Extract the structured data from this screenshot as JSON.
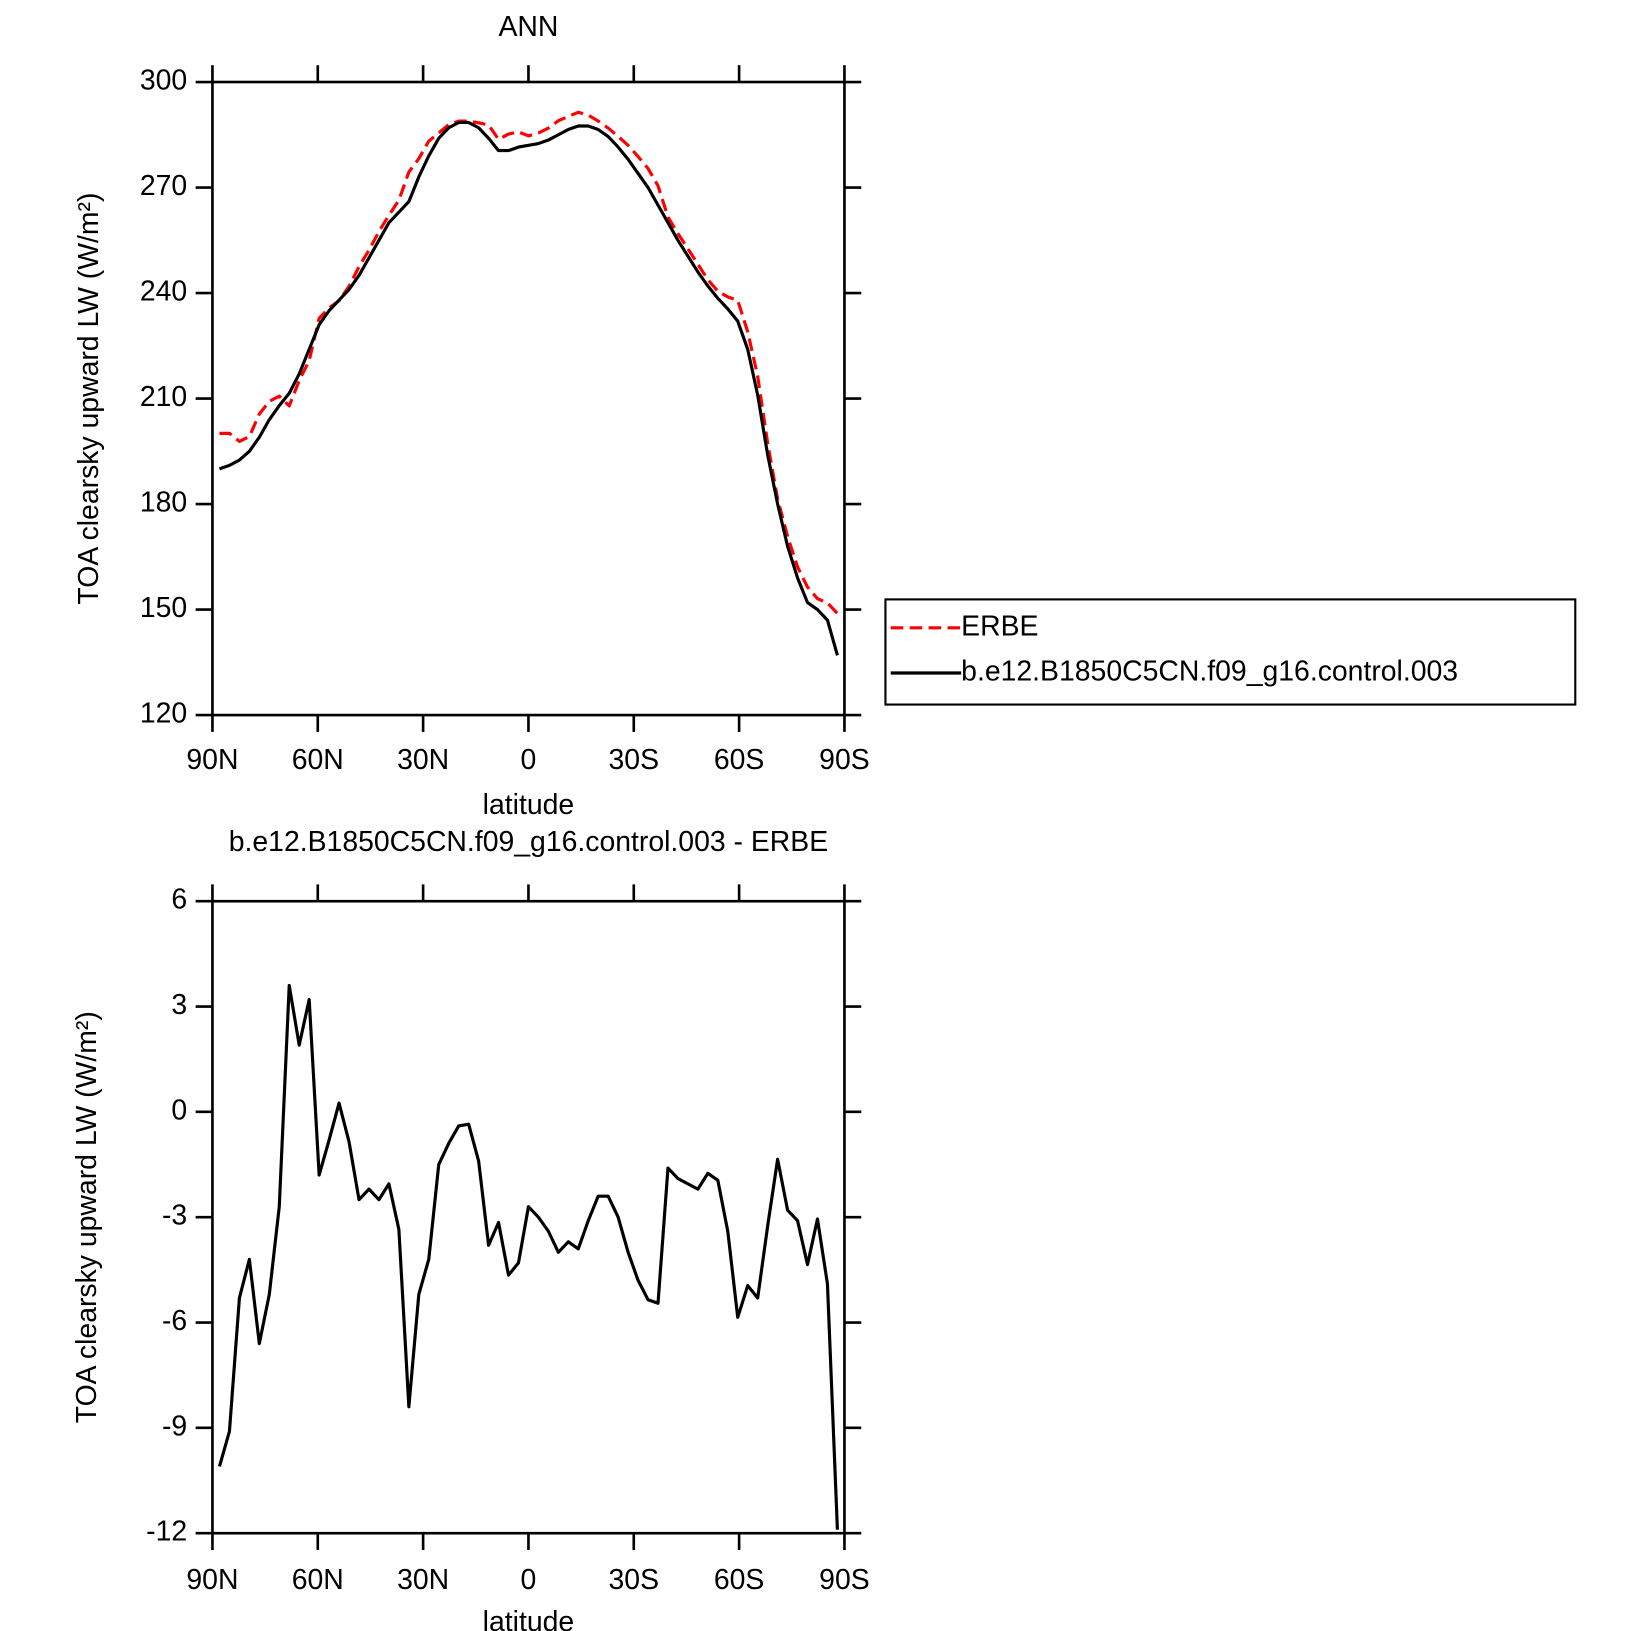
{
  "chart_data": [
    {
      "type": "line",
      "title": "ANN",
      "x_label": "latitude",
      "y_label": "TOA clearsky upward LW (W/m²)",
      "x": [
        88.0,
        85.16,
        82.32,
        79.48,
        76.65,
        73.81,
        70.97,
        68.13,
        65.29,
        62.45,
        59.61,
        56.77,
        53.94,
        51.1,
        48.26,
        45.42,
        42.58,
        39.74,
        36.9,
        34.06,
        31.23,
        28.39,
        25.55,
        22.71,
        19.87,
        17.03,
        14.19,
        11.35,
        8.52,
        5.68,
        2.84,
        0,
        -2.84,
        -5.68,
        -8.52,
        -11.35,
        -14.19,
        -17.03,
        -19.87,
        -22.71,
        -25.55,
        -28.39,
        -31.23,
        -34.06,
        -36.9,
        -39.74,
        -42.58,
        -45.42,
        -48.26,
        -51.1,
        -53.94,
        -56.77,
        -59.61,
        -62.45,
        -65.29,
        -68.13,
        -70.97,
        -73.81,
        -76.65,
        -79.48,
        -82.32,
        -85.16,
        -88.0
      ],
      "series": [
        {
          "name": "ERBE",
          "color": "#ff0000",
          "line_style": "dashed",
          "values": [
            200.1,
            200.1,
            197.8,
            199.2,
            205.6,
            209.2,
            210.7,
            207.9,
            215.1,
            220.8,
            232.8,
            235.8,
            237.8,
            241.9,
            247.5,
            252.2,
            257.5,
            262.1,
            266.4,
            274.4,
            278.2,
            283.2,
            285.5,
            287.9,
            288.9,
            288.9,
            288.4,
            287.8,
            283.7,
            285.2,
            285.8,
            284.7,
            285.5,
            286.9,
            289,
            290.2,
            291.4,
            290.6,
            288.9,
            286.9,
            284.5,
            282,
            278.8,
            275.4,
            270.5,
            261.6,
            256.9,
            252.6,
            248.2,
            243.8,
            240.5,
            238.9,
            237.9,
            229,
            216.3,
            197.3,
            181.4,
            170.8,
            162.1,
            156.4,
            153.1,
            151.9,
            148.9
          ]
        },
        {
          "name": "b.e12.B1850C5CN.f09_g16.control.003",
          "color": "#000000",
          "line_style": "solid",
          "values": [
            190,
            191,
            192.5,
            195,
            199,
            204,
            208,
            211.5,
            217,
            224,
            231,
            235,
            238,
            241,
            245,
            250,
            255,
            260,
            263,
            266,
            273,
            279,
            284,
            287,
            288.5,
            288.5,
            287,
            284,
            280.5,
            280.5,
            281.5,
            282,
            282.5,
            283.5,
            285,
            286.5,
            287.5,
            287.5,
            286.5,
            284.5,
            281.5,
            278,
            274,
            270,
            265,
            260,
            255,
            250.5,
            246,
            242,
            238.5,
            235.5,
            232,
            224,
            211,
            194,
            180,
            168,
            159,
            152,
            150,
            147,
            137
          ]
        }
      ],
      "xlim": [
        90,
        -90
      ],
      "xticks": [
        {
          "value": 90,
          "label": "90N"
        },
        {
          "value": 60,
          "label": "60N"
        },
        {
          "value": 30,
          "label": "30N"
        },
        0,
        {
          "value": -30,
          "label": "30S"
        },
        {
          "value": -60,
          "label": "60S"
        },
        {
          "value": -90,
          "label": "90S"
        }
      ],
      "ylim": [
        120,
        300
      ],
      "yticks": [
        120,
        150,
        180,
        210,
        240,
        270,
        300
      ],
      "legend": "right"
    },
    {
      "type": "line",
      "title": "b.e12.B1850C5CN.f09_g16.control.003 - ERBE",
      "x_label": "latitude",
      "y_label": "TOA clearsky upward LW (W/m²)",
      "x": [
        88.0,
        85.16,
        82.32,
        79.48,
        76.65,
        73.81,
        70.97,
        68.13,
        65.29,
        62.45,
        59.61,
        56.77,
        53.94,
        51.1,
        48.26,
        45.42,
        42.58,
        39.74,
        36.9,
        34.06,
        31.23,
        28.39,
        25.55,
        22.71,
        19.87,
        17.03,
        14.19,
        11.35,
        8.52,
        5.68,
        2.84,
        0,
        -2.84,
        -5.68,
        -8.52,
        -11.35,
        -14.19,
        -17.03,
        -19.87,
        -22.71,
        -25.55,
        -28.39,
        -31.23,
        -34.06,
        -36.9,
        -39.74,
        -42.58,
        -45.42,
        -48.26,
        -51.1,
        -53.94,
        -56.77,
        -59.61,
        -62.45,
        -65.29,
        -68.13,
        -70.97,
        -73.81,
        -76.65,
        -79.48,
        -82.32,
        -85.16,
        -88.0
      ],
      "color": "#000000",
      "values": [
        -10.1,
        -9.1,
        -5.3,
        -4.2,
        -6.6,
        -5.2,
        -2.7,
        3.6,
        1.9,
        3.2,
        -1.8,
        -0.8,
        0.25,
        -0.85,
        -2.5,
        -2.2,
        -2.5,
        -2.05,
        -3.35,
        -8.4,
        -5.2,
        -4.2,
        -1.5,
        -0.9,
        -0.4,
        -0.35,
        -1.4,
        -3.8,
        -3.15,
        -4.65,
        -4.3,
        -2.7,
        -3.0,
        -3.4,
        -4.0,
        -3.7,
        -3.9,
        -3.1,
        -2.4,
        -2.4,
        -3.0,
        -4.0,
        -4.8,
        -5.35,
        -5.45,
        -1.6,
        -1.9,
        -2.05,
        -2.2,
        -1.75,
        -1.95,
        -3.4,
        -5.85,
        -4.95,
        -5.3,
        -3.25,
        -1.35,
        -2.8,
        -3.1,
        -4.35,
        -3.05,
        -4.9,
        -11.9
      ],
      "xlim": [
        90,
        -90
      ],
      "xticks": [
        {
          "value": 90,
          "label": "90N"
        },
        {
          "value": 60,
          "label": "60N"
        },
        {
          "value": 30,
          "label": "30N"
        },
        0,
        {
          "value": -30,
          "label": "30S"
        },
        {
          "value": -60,
          "label": "60S"
        },
        {
          "value": -90,
          "label": "90S"
        }
      ],
      "ylim": [
        -12,
        6
      ],
      "yticks": [
        -12,
        -9,
        -6,
        -3,
        0,
        3,
        6
      ]
    }
  ]
}
